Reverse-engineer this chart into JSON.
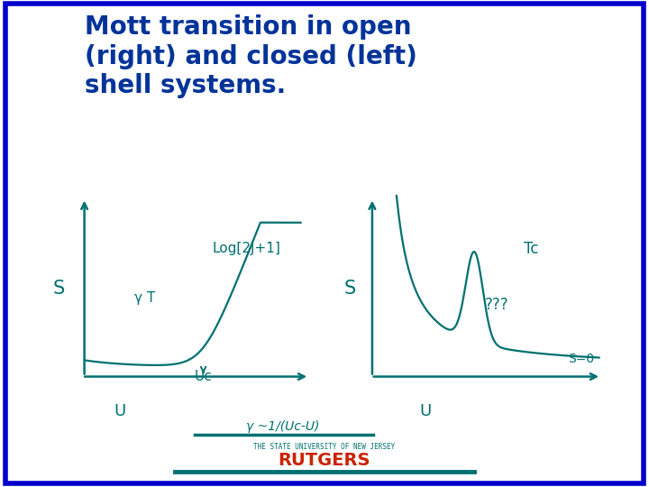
{
  "background_color": "#ffffff",
  "border_color": "#0000cc",
  "title_text": "Mott transition in open\n(right) and closed (left)\nshell systems.",
  "title_color": "#003399",
  "title_fontsize": 20,
  "curve_color": "#007070",
  "label_color": "#007070",
  "rutgers_color": "#cc2200",
  "rutgers_text": "RUTGERS",
  "nj_text": "THE STATE UNIVERSITY OF NEW JERSEY",
  "gamma_text": "γ ~1/(Uc-U)",
  "left_ylabel": "S",
  "left_xlabel": "U",
  "left_uc_label": "Uc",
  "left_gt_label": "γ T",
  "left_log_label": "Log[2J+1]",
  "right_ylabel": "S",
  "right_xlabel": "U",
  "right_tc_label": "Tc",
  "right_qqq_label": "???",
  "right_s0_label": "S=0",
  "fig_width": 7.2,
  "fig_height": 5.4,
  "dpi": 100
}
